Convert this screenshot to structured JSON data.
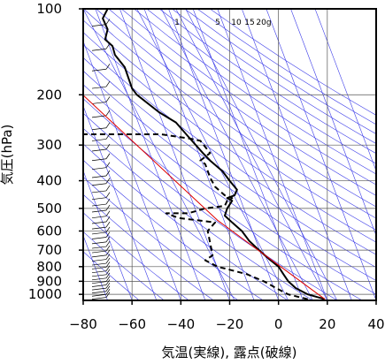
{
  "chart_data": {
    "type": "line",
    "xlabel": "気温(実線), 露点(破線)",
    "ylabel": "気圧(hPa)",
    "xlim": [
      -80,
      40
    ],
    "ylim_pressure": [
      1050,
      100
    ],
    "y_scale": "log",
    "x_ticks": [
      -80,
      -60,
      -40,
      -20,
      0,
      20,
      40
    ],
    "x_tick_labels": [
      "−80",
      "−60",
      "−40",
      "−20",
      "0",
      "20",
      "40"
    ],
    "y_ticks": [
      100,
      200,
      300,
      400,
      500,
      600,
      700,
      800,
      900,
      1000
    ],
    "y_tick_labels": [
      "100",
      "200",
      "300",
      "400",
      "500",
      "600",
      "700",
      "800",
      "900",
      "1000"
    ],
    "mixing_ratio_labels": [
      "1",
      "5",
      "10",
      "15",
      "20g"
    ],
    "grid": true,
    "series": [
      {
        "style": "solid",
        "color": "#000000",
        "points": [
          [
            19,
            1040
          ],
          [
            12,
            1000
          ],
          [
            7,
            950
          ],
          [
            4,
            900
          ],
          [
            2,
            850
          ],
          [
            0,
            800
          ],
          [
            -4,
            750
          ],
          [
            -8,
            700
          ],
          [
            -12,
            650
          ],
          [
            -15,
            600
          ],
          [
            -19,
            560
          ],
          [
            -22,
            530
          ],
          [
            -21,
            500
          ],
          [
            -19,
            470
          ],
          [
            -21,
            460
          ],
          [
            -18,
            450
          ],
          [
            -17,
            430
          ],
          [
            -20,
            400
          ],
          [
            -23,
            370
          ],
          [
            -28,
            340
          ],
          [
            -31,
            320
          ],
          [
            -37,
            280
          ],
          [
            -42,
            250
          ],
          [
            -49,
            230
          ],
          [
            -58,
            200
          ],
          [
            -60,
            190
          ],
          [
            -63,
            160
          ],
          [
            -67,
            145
          ],
          [
            -68,
            135
          ],
          [
            -71,
            128
          ],
          [
            -70,
            118
          ],
          [
            -72,
            108
          ],
          [
            -70,
            100
          ]
        ]
      },
      {
        "style": "dashed",
        "color": "#000000",
        "points": [
          [
            12,
            1040
          ],
          [
            4,
            1000
          ],
          [
            -1,
            950
          ],
          [
            -6,
            900
          ],
          [
            -13,
            850
          ],
          [
            -25,
            800
          ],
          [
            -30,
            760
          ],
          [
            -27,
            730
          ],
          [
            -28,
            660
          ],
          [
            -29,
            600
          ],
          [
            -26,
            560
          ],
          [
            -41,
            540
          ],
          [
            -46,
            520
          ],
          [
            -37,
            520
          ],
          [
            -30,
            500
          ],
          [
            -22,
            490
          ],
          [
            -21,
            470
          ],
          [
            -19,
            460
          ],
          [
            -22,
            450
          ],
          [
            -26,
            420
          ],
          [
            -28,
            390
          ],
          [
            -30,
            350
          ],
          [
            -32,
            340
          ],
          [
            -28,
            320
          ],
          [
            -32,
            290
          ],
          [
            -36,
            285
          ],
          [
            -48,
            275
          ],
          [
            -60,
            275
          ],
          [
            -65,
            275
          ],
          [
            -82,
            275
          ]
        ]
      },
      {
        "style": "solid",
        "color": "#e00000",
        "points": [
          [
            19,
            1040
          ],
          [
            -25,
            550
          ],
          [
            -83,
            190
          ]
        ]
      }
    ],
    "wind_barbs": "left margin, 100-1040 hPa"
  }
}
